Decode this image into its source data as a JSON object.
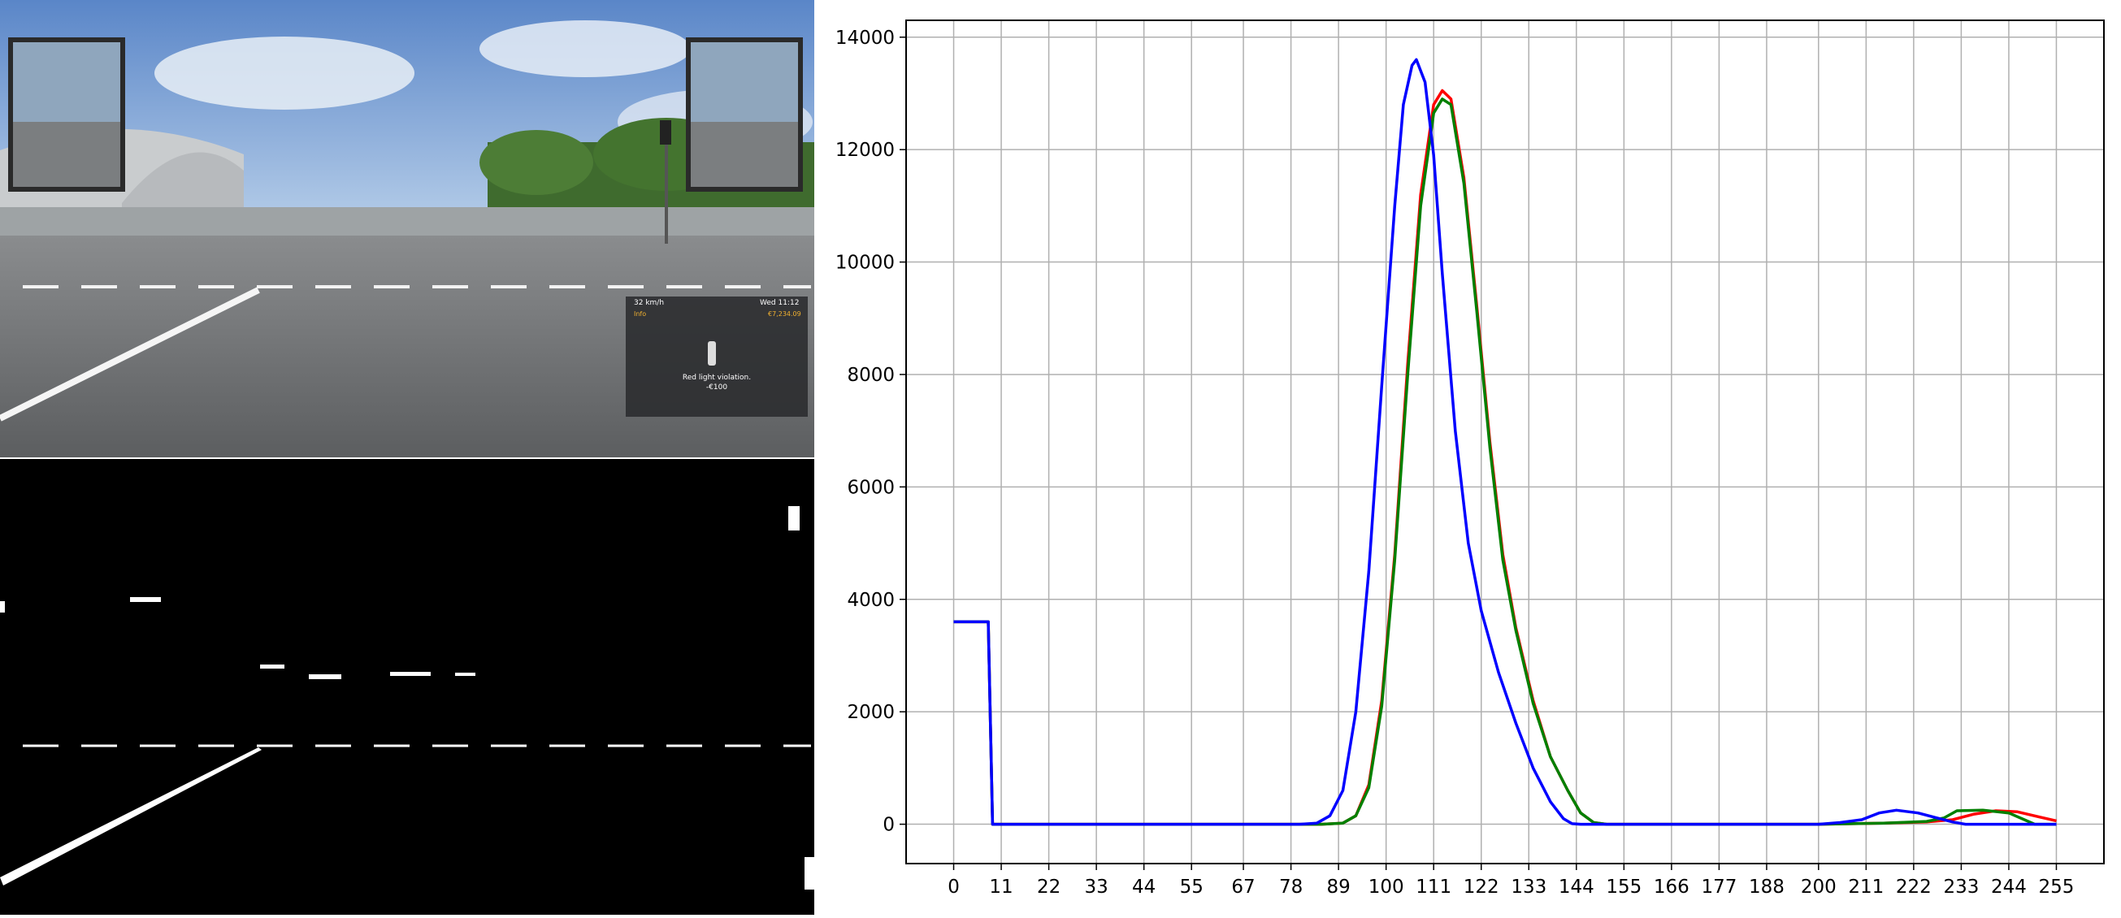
{
  "hud": {
    "speed": "32 km/h",
    "time": "Wed 11:12",
    "info_label": "Info",
    "money": "€7,234.09",
    "message": "Red light violation.",
    "fine": "-€100"
  },
  "chart_data": {
    "type": "line",
    "title": "",
    "xlabel": "",
    "ylabel": "",
    "xlim": [
      -11,
      266
    ],
    "ylim": [
      -700,
      14300
    ],
    "xticks": [
      0,
      11,
      22,
      33,
      44,
      55,
      67,
      78,
      89,
      100,
      111,
      122,
      133,
      144,
      155,
      166,
      177,
      188,
      200,
      211,
      222,
      233,
      244,
      255
    ],
    "yticks": [
      0,
      2000,
      4000,
      6000,
      8000,
      10000,
      12000,
      14000
    ],
    "grid": true,
    "legend": "none",
    "series": [
      {
        "color": "#ff0000",
        "points": [
          [
            0,
            3600
          ],
          [
            8,
            3600
          ],
          [
            9,
            0
          ],
          [
            85,
            0
          ],
          [
            90,
            20
          ],
          [
            93,
            150
          ],
          [
            96,
            700
          ],
          [
            99,
            2200
          ],
          [
            102,
            4800
          ],
          [
            105,
            8200
          ],
          [
            108,
            11200
          ],
          [
            111,
            12800
          ],
          [
            113,
            13050
          ],
          [
            115,
            12900
          ],
          [
            118,
            11500
          ],
          [
            121,
            9200
          ],
          [
            124,
            6800
          ],
          [
            127,
            4800
          ],
          [
            130,
            3500
          ],
          [
            134,
            2200
          ],
          [
            138,
            1200
          ],
          [
            142,
            600
          ],
          [
            145,
            200
          ],
          [
            148,
            30
          ],
          [
            151,
            0
          ],
          [
            200,
            0
          ],
          [
            215,
            20
          ],
          [
            225,
            40
          ],
          [
            231,
            80
          ],
          [
            236,
            180
          ],
          [
            241,
            240
          ],
          [
            246,
            220
          ],
          [
            251,
            130
          ],
          [
            255,
            60
          ]
        ]
      },
      {
        "color": "#008000",
        "points": [
          [
            0,
            3600
          ],
          [
            8,
            3600
          ],
          [
            9,
            0
          ],
          [
            85,
            0
          ],
          [
            90,
            20
          ],
          [
            93,
            150
          ],
          [
            96,
            650
          ],
          [
            99,
            2100
          ],
          [
            102,
            4700
          ],
          [
            105,
            8000
          ],
          [
            108,
            11000
          ],
          [
            111,
            12650
          ],
          [
            113,
            12900
          ],
          [
            115,
            12800
          ],
          [
            118,
            11400
          ],
          [
            121,
            9100
          ],
          [
            124,
            6700
          ],
          [
            127,
            4700
          ],
          [
            130,
            3450
          ],
          [
            134,
            2150
          ],
          [
            138,
            1200
          ],
          [
            142,
            600
          ],
          [
            145,
            200
          ],
          [
            148,
            30
          ],
          [
            151,
            0
          ],
          [
            200,
            0
          ],
          [
            215,
            20
          ],
          [
            225,
            50
          ],
          [
            229,
            110
          ],
          [
            232,
            240
          ],
          [
            238,
            250
          ],
          [
            244,
            200
          ],
          [
            247,
            100
          ],
          [
            250,
            0
          ],
          [
            255,
            0
          ]
        ]
      },
      {
        "color": "#0000ff",
        "points": [
          [
            0,
            3600
          ],
          [
            8,
            3600
          ],
          [
            9,
            0
          ],
          [
            80,
            0
          ],
          [
            84,
            20
          ],
          [
            87,
            150
          ],
          [
            90,
            600
          ],
          [
            93,
            2000
          ],
          [
            96,
            4500
          ],
          [
            99,
            7800
          ],
          [
            102,
            11000
          ],
          [
            104,
            12800
          ],
          [
            106,
            13500
          ],
          [
            107,
            13600
          ],
          [
            109,
            13200
          ],
          [
            111,
            11900
          ],
          [
            113,
            9800
          ],
          [
            116,
            7000
          ],
          [
            119,
            5000
          ],
          [
            122,
            3800
          ],
          [
            126,
            2700
          ],
          [
            130,
            1800
          ],
          [
            134,
            1000
          ],
          [
            138,
            400
          ],
          [
            141,
            100
          ],
          [
            143,
            10
          ],
          [
            145,
            0
          ],
          [
            200,
            0
          ],
          [
            205,
            30
          ],
          [
            210,
            80
          ],
          [
            214,
            200
          ],
          [
            218,
            250
          ],
          [
            223,
            200
          ],
          [
            227,
            120
          ],
          [
            231,
            40
          ],
          [
            234,
            0
          ],
          [
            255,
            0
          ]
        ]
      }
    ]
  }
}
